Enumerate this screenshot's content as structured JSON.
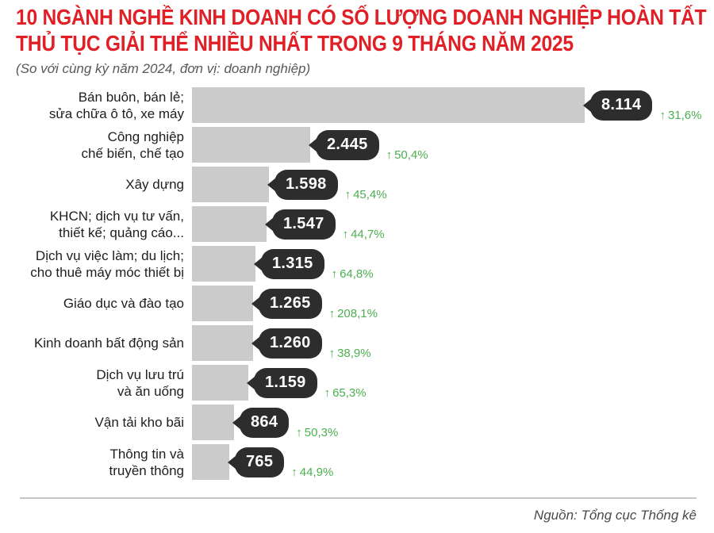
{
  "header": {
    "title_line1": "10 NGÀNH NGHỀ KINH DOANH CÓ SỐ LƯỢNG DOANH NGHIỆP HOÀN TẤT",
    "title_line2": "THỦ TỤC GIẢI THỂ NHIỀU NHẤT TRONG 9 THÁNG NĂM 2025",
    "subtitle": "(So với cùng kỳ năm 2024, đơn vị: doanh nghiệp)"
  },
  "chart_data": {
    "type": "bar",
    "orientation": "horizontal",
    "title": "10 ngành nghề kinh doanh có số lượng doanh nghiệp hoàn tất thủ tục giải thể nhiều nhất trong 9 tháng năm 2025",
    "comparison_note": "So với cùng kỳ năm 2024",
    "unit": "doanh nghiệp",
    "xlim": [
      0,
      8114
    ],
    "grid": false,
    "legend": "none",
    "up_arrow_glyph": "↑",
    "rows": [
      {
        "category": "Bán buôn, bán lẻ; sửa chữa ô tô, xe máy",
        "category_lines": [
          "Bán buôn, bán lẻ;",
          "sửa chữa ô tô, xe máy"
        ],
        "value": 8114,
        "value_label": "8.114",
        "change_pct": 31.6,
        "change_label": "31,6%"
      },
      {
        "category": "Công nghiệp chế biến, chế tạo",
        "category_lines": [
          "Công nghiệp",
          "chế biến, chế tạo"
        ],
        "value": 2445,
        "value_label": "2.445",
        "change_pct": 50.4,
        "change_label": "50,4%"
      },
      {
        "category": "Xây dựng",
        "category_lines": [
          "Xây dựng"
        ],
        "value": 1598,
        "value_label": "1.598",
        "change_pct": 45.4,
        "change_label": "45,4%"
      },
      {
        "category": "KHCN; dịch vụ tư vấn, thiết kế; quảng cáo...",
        "category_lines": [
          "KHCN; dịch vụ tư vấn,",
          "thiết kế; quảng cáo..."
        ],
        "value": 1547,
        "value_label": "1.547",
        "change_pct": 44.7,
        "change_label": "44,7%"
      },
      {
        "category": "Dịch vụ việc làm; du lịch; cho thuê máy móc thiết bị",
        "category_lines": [
          "Dịch vụ việc làm; du lịch;",
          "cho thuê máy móc thiết bị"
        ],
        "value": 1315,
        "value_label": "1.315",
        "change_pct": 64.8,
        "change_label": "64,8%"
      },
      {
        "category": "Giáo dục và đào tạo",
        "category_lines": [
          "Giáo dục và đào tạo"
        ],
        "value": 1265,
        "value_label": "1.265",
        "change_pct": 208.1,
        "change_label": "208,1%"
      },
      {
        "category": "Kinh doanh bất động sản",
        "category_lines": [
          "Kinh doanh bất động sản"
        ],
        "value": 1260,
        "value_label": "1.260",
        "change_pct": 38.9,
        "change_label": "38,9%"
      },
      {
        "category": "Dịch vụ lưu trú và ăn uống",
        "category_lines": [
          "Dịch vụ lưu trú",
          "và ăn uống"
        ],
        "value": 1159,
        "value_label": "1.159",
        "change_pct": 65.3,
        "change_label": "65,3%"
      },
      {
        "category": "Vận tải kho bãi",
        "category_lines": [
          "Vận tải kho bãi"
        ],
        "value": 864,
        "value_label": "864",
        "change_pct": 50.3,
        "change_label": "50,3%"
      },
      {
        "category": "Thông tin và truyền thông",
        "category_lines": [
          "Thông tin và",
          "truyền thông"
        ],
        "value": 765,
        "value_label": "765",
        "change_pct": 44.9,
        "change_label": "44,9%"
      }
    ],
    "colors": {
      "title_red": "#e01f26",
      "bar_gray": "#cbcbcb",
      "badge_bg": "#2d2d2d",
      "badge_text": "#ffffff",
      "change_green": "#4caf50"
    }
  },
  "footer": {
    "source": "Nguồn: Tổng cục Thống kê"
  }
}
